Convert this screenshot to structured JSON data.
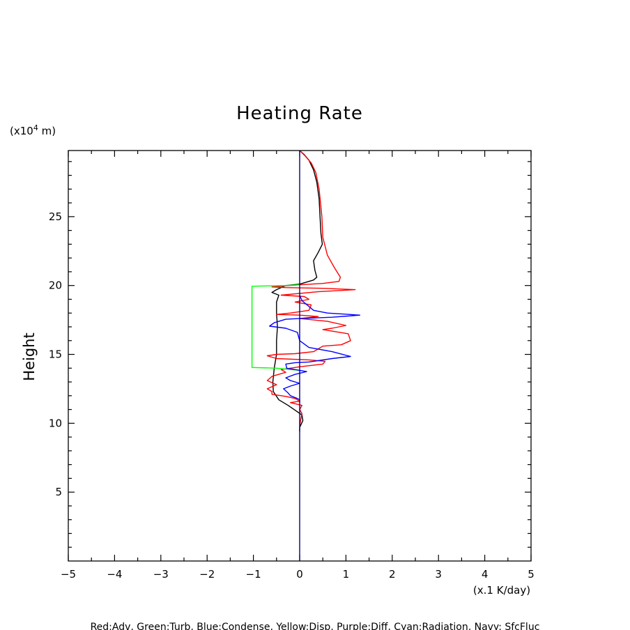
{
  "chart_data": {
    "type": "line",
    "title": "Heating Rate",
    "xlabel": "(x.1 K/day)",
    "ylabel": "Height",
    "yunit_prefix": "(x10",
    "yunit_exp": "4",
    "yunit_suffix": " m)",
    "xlim": [
      -5,
      5
    ],
    "ylim": [
      0,
      29.8
    ],
    "xticks": [
      -5,
      -4,
      -3,
      -2,
      -1,
      0,
      1,
      2,
      3,
      4,
      5
    ],
    "xtick_labels": [
      "−5",
      "−4",
      "−3",
      "−2",
      "−1",
      "0",
      "1",
      "2",
      "3",
      "4",
      "5"
    ],
    "yticks": [
      5,
      10,
      15,
      20,
      25
    ],
    "ytick_labels": [
      "5",
      "10",
      "15",
      "20",
      "25"
    ],
    "grid": false,
    "legend_text": "Red:Adv, Green:Turb, Blue:Condense, Yellow:Disp, Purple:Diff, Cyan:Radiation, Navy: SfcFluc",
    "series": [
      {
        "color": "#000000",
        "points": [
          [
            0.0,
            29.8
          ],
          [
            0.1,
            29.5
          ],
          [
            0.2,
            29.1
          ],
          [
            0.3,
            28.4
          ],
          [
            0.37,
            27.5
          ],
          [
            0.42,
            26.3
          ],
          [
            0.44,
            25.0
          ],
          [
            0.46,
            23.8
          ],
          [
            0.49,
            23.0
          ],
          [
            0.4,
            22.4
          ],
          [
            0.3,
            21.8
          ],
          [
            0.33,
            21.1
          ],
          [
            0.37,
            20.6
          ],
          [
            0.3,
            20.4
          ],
          [
            0.0,
            20.1
          ],
          [
            -0.3,
            20.0
          ],
          [
            -0.5,
            19.7
          ],
          [
            -0.6,
            19.5
          ],
          [
            -0.45,
            19.3
          ],
          [
            -0.5,
            18.8
          ],
          [
            -0.5,
            18.0
          ],
          [
            -0.48,
            17.0
          ],
          [
            -0.5,
            16.0
          ],
          [
            -0.5,
            15.0
          ],
          [
            -0.55,
            14.0
          ],
          [
            -0.58,
            13.0
          ],
          [
            -0.57,
            12.3
          ],
          [
            -0.45,
            11.7
          ],
          [
            -0.25,
            11.3
          ],
          [
            -0.1,
            10.95
          ],
          [
            0.05,
            10.6
          ],
          [
            0.07,
            10.2
          ],
          [
            0.0,
            9.7
          ],
          [
            0.0,
            9.4
          ]
        ]
      },
      {
        "color": "#ff0000",
        "points": [
          [
            0.0,
            29.8
          ],
          [
            0.12,
            29.4
          ],
          [
            0.25,
            28.9
          ],
          [
            0.35,
            28.2
          ],
          [
            0.42,
            27.0
          ],
          [
            0.48,
            25.0
          ],
          [
            0.5,
            23.5
          ],
          [
            0.6,
            22.2
          ],
          [
            0.75,
            21.3
          ],
          [
            0.88,
            20.6
          ],
          [
            0.85,
            20.3
          ],
          [
            0.5,
            20.15
          ],
          [
            0.0,
            20.05
          ],
          [
            -0.6,
            19.9
          ],
          [
            -0.3,
            19.85
          ],
          [
            0.5,
            19.8
          ],
          [
            1.2,
            19.7
          ],
          [
            0.4,
            19.55
          ],
          [
            -0.4,
            19.3
          ],
          [
            0.1,
            19.2
          ],
          [
            0.2,
            19.0
          ],
          [
            -0.1,
            18.8
          ],
          [
            0.25,
            18.6
          ],
          [
            0.2,
            18.2
          ],
          [
            -0.2,
            18.0
          ],
          [
            -0.5,
            17.9
          ],
          [
            0.0,
            17.85
          ],
          [
            0.4,
            17.75
          ],
          [
            0.0,
            17.6
          ],
          [
            0.6,
            17.4
          ],
          [
            1.0,
            17.1
          ],
          [
            0.7,
            16.9
          ],
          [
            0.5,
            16.8
          ],
          [
            1.05,
            16.5
          ],
          [
            1.1,
            16.0
          ],
          [
            0.9,
            15.7
          ],
          [
            0.5,
            15.6
          ],
          [
            0.3,
            15.2
          ],
          [
            -0.1,
            15.05
          ],
          [
            -0.5,
            15.0
          ],
          [
            -0.7,
            14.9
          ],
          [
            -0.5,
            14.7
          ],
          [
            0.2,
            14.6
          ],
          [
            0.55,
            14.5
          ],
          [
            0.5,
            14.3
          ],
          [
            0.0,
            14.1
          ],
          [
            -0.4,
            13.9
          ],
          [
            -0.3,
            13.7
          ],
          [
            -0.6,
            13.4
          ],
          [
            -0.7,
            13.1
          ],
          [
            -0.5,
            12.8
          ],
          [
            -0.7,
            12.5
          ],
          [
            -0.6,
            12.3
          ],
          [
            -0.6,
            12.1
          ],
          [
            -0.3,
            11.95
          ],
          [
            -0.1,
            11.8
          ],
          [
            0.0,
            11.6
          ],
          [
            -0.2,
            11.5
          ],
          [
            0.05,
            11.3
          ],
          [
            0.0,
            11.0
          ],
          [
            0.05,
            10.7
          ],
          [
            0.02,
            10.2
          ],
          [
            0.0,
            9.8
          ]
        ]
      },
      {
        "color": "#00ff00",
        "points": [
          [
            0.0,
            20.05
          ],
          [
            -0.3,
            20.0
          ],
          [
            -1.03,
            19.95
          ],
          [
            -1.03,
            14.05
          ],
          [
            -0.5,
            14.0
          ],
          [
            -0.2,
            13.9
          ],
          [
            0.0,
            13.85
          ]
        ]
      },
      {
        "color": "#0000ff",
        "points": [
          [
            0.0,
            19.3
          ],
          [
            0.05,
            18.9
          ],
          [
            0.3,
            18.2
          ],
          [
            0.6,
            18.0
          ],
          [
            1.3,
            17.85
          ],
          [
            0.7,
            17.7
          ],
          [
            0.0,
            17.6
          ],
          [
            -0.3,
            17.55
          ],
          [
            -0.55,
            17.3
          ],
          [
            -0.65,
            17.05
          ],
          [
            -0.3,
            16.9
          ],
          [
            -0.05,
            16.6
          ],
          [
            0.0,
            16.0
          ],
          [
            0.2,
            15.5
          ],
          [
            0.7,
            15.2
          ],
          [
            1.1,
            14.85
          ],
          [
            0.7,
            14.7
          ],
          [
            0.2,
            14.45
          ],
          [
            -0.1,
            14.4
          ],
          [
            -0.3,
            14.3
          ],
          [
            -0.28,
            14.0
          ],
          [
            -0.1,
            13.9
          ],
          [
            0.15,
            13.75
          ],
          [
            -0.1,
            13.55
          ],
          [
            -0.3,
            13.3
          ],
          [
            -0.2,
            13.1
          ],
          [
            0.0,
            12.9
          ],
          [
            -0.2,
            12.7
          ],
          [
            -0.35,
            12.5
          ],
          [
            -0.25,
            12.2
          ],
          [
            -0.2,
            12.0
          ],
          [
            -0.05,
            11.8
          ],
          [
            0.0,
            11.7
          ],
          [
            0.0,
            11.5
          ]
        ]
      },
      {
        "color": "#000080",
        "points": [
          [
            0.0,
            0.0
          ],
          [
            0.0,
            29.8
          ]
        ]
      }
    ]
  }
}
